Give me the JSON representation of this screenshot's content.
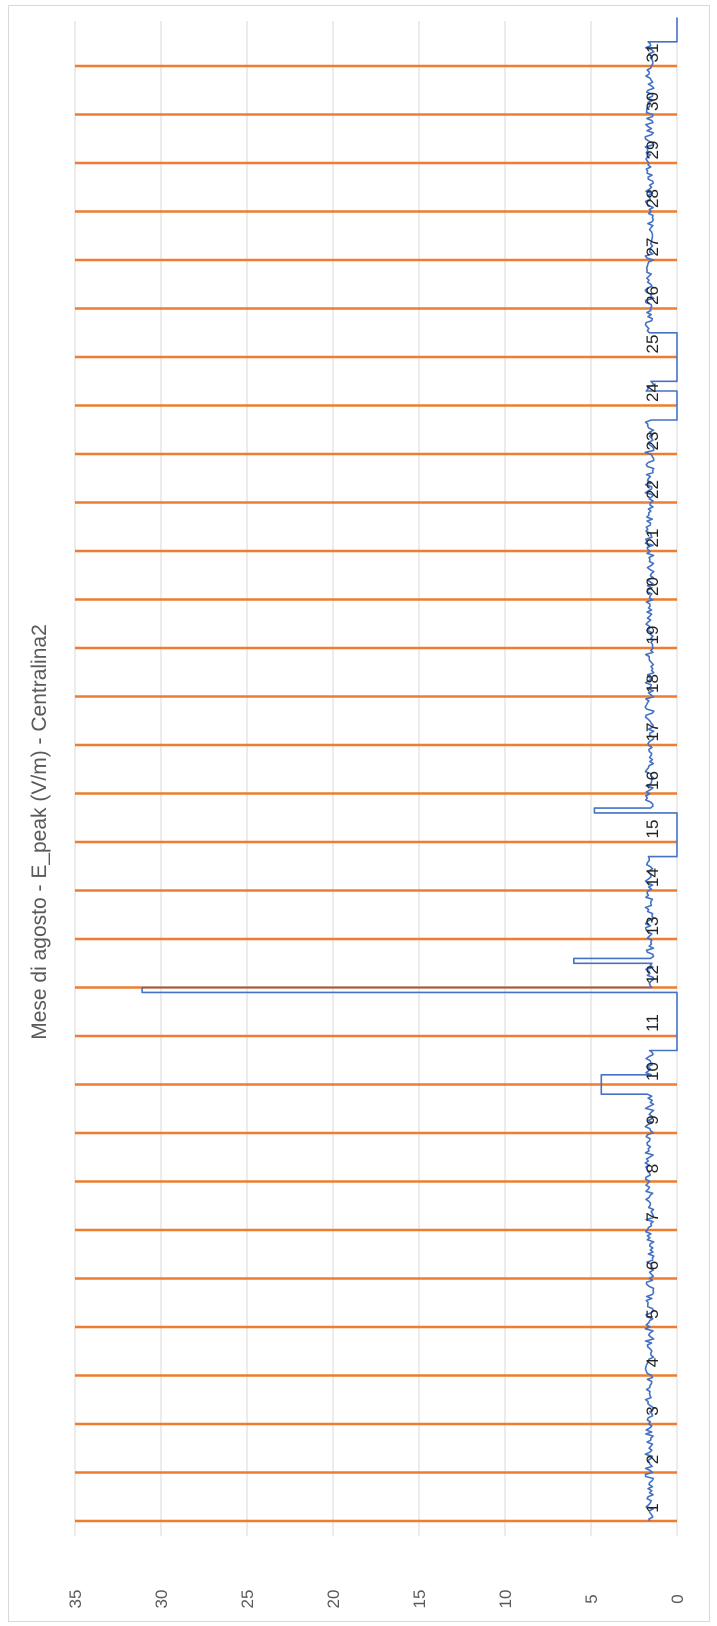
{
  "chart_data": {
    "type": "line",
    "orientation": "rotated-90-clockwise",
    "title": "Mese di agosto - E_peak (V/m) - Centralina2",
    "value_axis": {
      "min": 0,
      "max": 35,
      "ticks": [
        "0",
        "5",
        "10",
        "15",
        "20",
        "25",
        "30",
        "35"
      ]
    },
    "day_labels": [
      "1",
      "2",
      "3",
      "4",
      "5",
      "6",
      "7",
      "8",
      "9",
      "10",
      "11",
      "12",
      "13",
      "14",
      "15",
      "16",
      "17",
      "18",
      "19",
      "20",
      "21",
      "22",
      "23",
      "24",
      "25",
      "26",
      "27",
      "28",
      "29",
      "30",
      "31"
    ],
    "series": [
      {
        "color": "#4472c4",
        "baseline": 1.6,
        "segments": [
          {
            "from_day": 1,
            "to_day": 9.8,
            "value": 1.6
          },
          {
            "from_day": 9.8,
            "to_day": 10.2,
            "value": 4.4
          },
          {
            "from_day": 10.2,
            "to_day": 10.7,
            "value": 1.6
          },
          {
            "from_day": 10.7,
            "to_day": 11.9,
            "value": 0
          },
          {
            "from_day": 11.9,
            "to_day": 12.0,
            "value": 31.1
          },
          {
            "from_day": 12.0,
            "to_day": 12.5,
            "value": 1.6
          },
          {
            "from_day": 12.5,
            "to_day": 12.6,
            "value": 6.0
          },
          {
            "from_day": 12.6,
            "to_day": 14.7,
            "value": 1.6
          },
          {
            "from_day": 14.7,
            "to_day": 15.6,
            "value": 0
          },
          {
            "from_day": 15.6,
            "to_day": 15.7,
            "value": 4.8
          },
          {
            "from_day": 15.7,
            "to_day": 23.7,
            "value": 1.6
          },
          {
            "from_day": 23.7,
            "to_day": 24.3,
            "value": 0
          },
          {
            "from_day": 24.3,
            "to_day": 24.5,
            "value": 1.6
          },
          {
            "from_day": 24.5,
            "to_day": 25.5,
            "value": 0
          },
          {
            "from_day": 25.5,
            "to_day": 31.5,
            "value": 1.6
          },
          {
            "from_day": 31.5,
            "to_day": 32.0,
            "value": 0
          }
        ]
      }
    ],
    "day_separators": {
      "color": "#ed7d31"
    },
    "grid": true
  }
}
